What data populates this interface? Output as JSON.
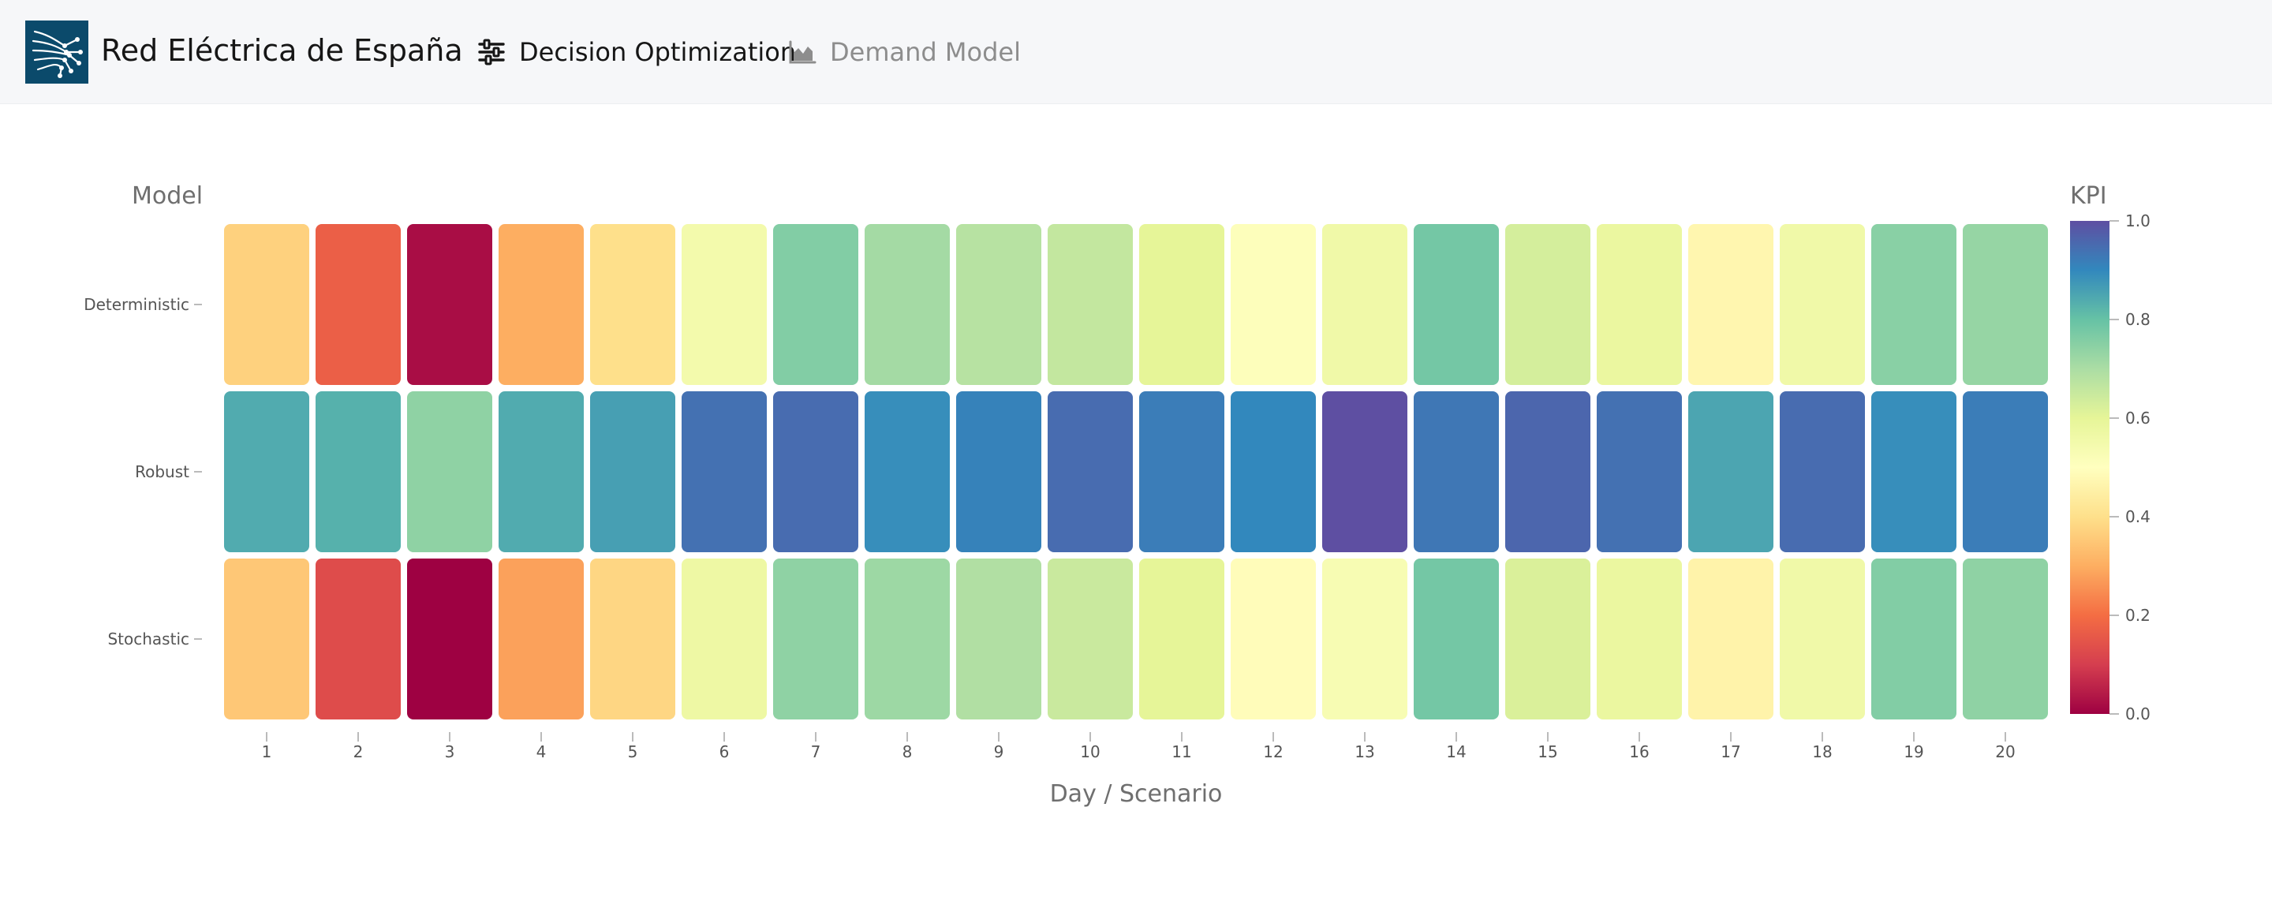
{
  "navbar": {
    "brand": "Red Eléctrica de España",
    "items": [
      {
        "label": "Decision Optimization",
        "icon": "sliders-icon",
        "active": true
      },
      {
        "label": "Demand Model",
        "icon": "area-chart-icon",
        "active": false
      }
    ]
  },
  "chart_data": {
    "type": "heatmap",
    "y_title": "Model",
    "xlabel": "Day / Scenario",
    "colorbar_title": "KPI",
    "colorscale": "Spectral",
    "zlim": [
      0,
      1
    ],
    "colorbar_ticks": [
      "1.0",
      "0.8",
      "0.6",
      "0.4",
      "0.2",
      "0.0"
    ],
    "x": [
      "1",
      "2",
      "3",
      "4",
      "5",
      "6",
      "7",
      "8",
      "9",
      "10",
      "11",
      "12",
      "13",
      "14",
      "15",
      "16",
      "17",
      "18",
      "19",
      "20"
    ],
    "rows": [
      {
        "name": "Deterministic",
        "values": [
          0.37,
          0.17,
          0.02,
          0.3,
          0.4,
          0.55,
          0.76,
          0.71,
          0.68,
          0.66,
          0.6,
          0.51,
          0.56,
          0.78,
          0.63,
          0.58,
          0.47,
          0.56,
          0.75,
          0.73
        ]
      },
      {
        "name": "Robust",
        "values": [
          0.84,
          0.83,
          0.74,
          0.84,
          0.86,
          0.94,
          0.95,
          0.89,
          0.91,
          0.95,
          0.92,
          0.9,
          1.0,
          0.93,
          0.96,
          0.94,
          0.85,
          0.95,
          0.89,
          0.92
        ]
      },
      {
        "name": "Stochastic",
        "values": [
          0.35,
          0.13,
          0.0,
          0.28,
          0.38,
          0.57,
          0.74,
          0.72,
          0.69,
          0.65,
          0.6,
          0.49,
          0.53,
          0.78,
          0.62,
          0.58,
          0.46,
          0.56,
          0.76,
          0.74
        ]
      }
    ]
  }
}
